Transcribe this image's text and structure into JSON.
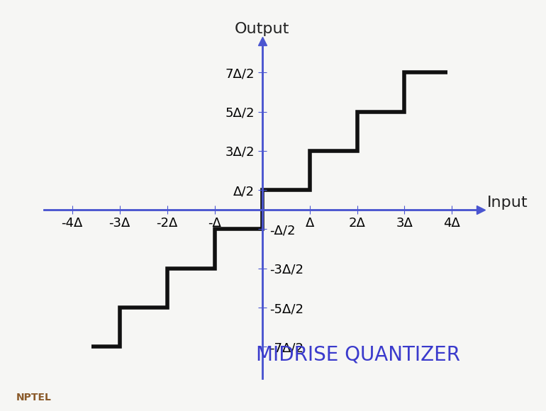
{
  "chart_data": {
    "type": "step",
    "title": "MIDRISE QUANTIZER",
    "x_label": "Input",
    "y_label": "Output",
    "bins": [
      -3.6,
      -3,
      -2,
      -1,
      0,
      1,
      2,
      3,
      3.9
    ],
    "values": [
      -3.5,
      -2.5,
      -1.5,
      -0.5,
      0.5,
      1.5,
      2.5,
      3.5
    ],
    "color": "#111111",
    "xlim": [
      -4.6,
      4.6
    ],
    "ylim": [
      -4.3,
      4.3
    ],
    "xticks": [
      {
        "value": -4,
        "label": "-4Δ"
      },
      {
        "value": -3,
        "label": "-3Δ"
      },
      {
        "value": -2,
        "label": "-2Δ"
      },
      {
        "value": -1,
        "label": "-Δ"
      },
      {
        "value": 1,
        "label": "Δ"
      },
      {
        "value": 2,
        "label": "2Δ"
      },
      {
        "value": 3,
        "label": "3Δ"
      },
      {
        "value": 4,
        "label": "4Δ"
      }
    ],
    "yticks": [
      {
        "value": -3.5,
        "label": "-7Δ/2"
      },
      {
        "value": -2.5,
        "label": "-5Δ/2"
      },
      {
        "value": -1.5,
        "label": "-3Δ/2"
      },
      {
        "value": -0.5,
        "label": "-Δ/2"
      },
      {
        "value": 0.5,
        "label": "Δ/2"
      },
      {
        "value": 1.5,
        "label": "3Δ/2"
      },
      {
        "value": 2.5,
        "label": "5Δ/2"
      },
      {
        "value": 3.5,
        "label": "7Δ/2"
      }
    ],
    "grid": false
  },
  "watermark": "NPTEL"
}
